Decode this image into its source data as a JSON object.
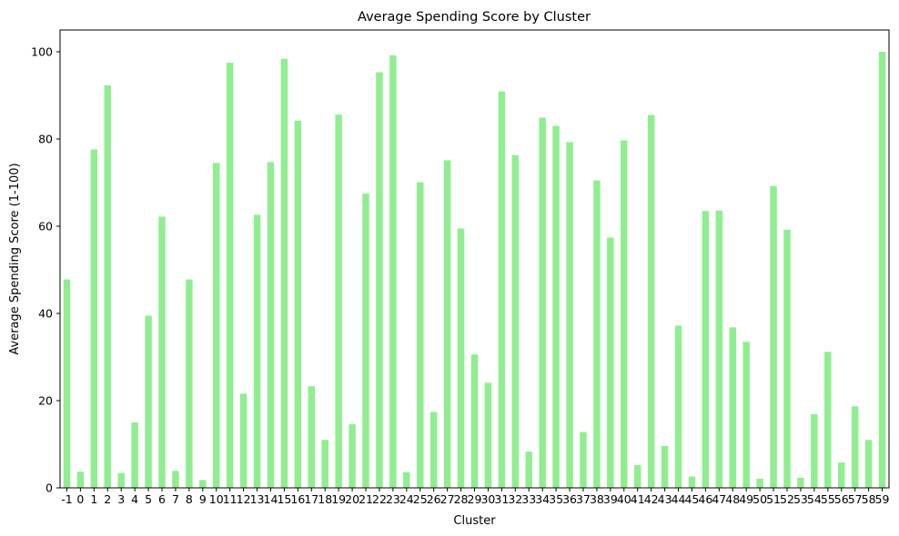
{
  "chart_data": {
    "type": "bar",
    "title": "Average Spending Score by Cluster",
    "xlabel": "Cluster",
    "ylabel": "Average Spending Score (1-100)",
    "ylim": [
      0,
      105
    ],
    "yticks": [
      0,
      20,
      40,
      60,
      80,
      100
    ],
    "bar_color": "#90ee90",
    "grid": false,
    "legend": "none",
    "categories": [
      "-1",
      "0",
      "1",
      "2",
      "3",
      "4",
      "5",
      "6",
      "7",
      "8",
      "9",
      "10",
      "11",
      "12",
      "13",
      "14",
      "15",
      "16",
      "17",
      "18",
      "19",
      "20",
      "21",
      "22",
      "23",
      "24",
      "25",
      "26",
      "27",
      "28",
      "29",
      "30",
      "31",
      "32",
      "33",
      "34",
      "35",
      "36",
      "37",
      "38",
      "39",
      "40",
      "41",
      "42",
      "43",
      "44",
      "45",
      "46",
      "47",
      "48",
      "49",
      "50",
      "51",
      "52",
      "53",
      "54",
      "55",
      "56",
      "57",
      "58",
      "59"
    ],
    "values": [
      47.8,
      3.7,
      77.6,
      92.3,
      3.4,
      15.0,
      39.5,
      62.2,
      3.9,
      47.8,
      1.8,
      74.5,
      97.5,
      21.6,
      62.6,
      74.7,
      98.4,
      84.2,
      23.3,
      11.0,
      85.6,
      14.6,
      67.5,
      95.3,
      99.2,
      3.6,
      70.1,
      17.4,
      75.1,
      59.5,
      30.6,
      24.1,
      90.9,
      76.3,
      8.3,
      84.9,
      83.0,
      79.3,
      12.8,
      70.5,
      57.4,
      79.7,
      5.2,
      85.5,
      9.6,
      37.2,
      2.6,
      63.5,
      63.6,
      36.8,
      33.5,
      2.1,
      69.2,
      59.2,
      2.3,
      16.9,
      31.2,
      5.8,
      18.7,
      11.0,
      100.0
    ]
  }
}
